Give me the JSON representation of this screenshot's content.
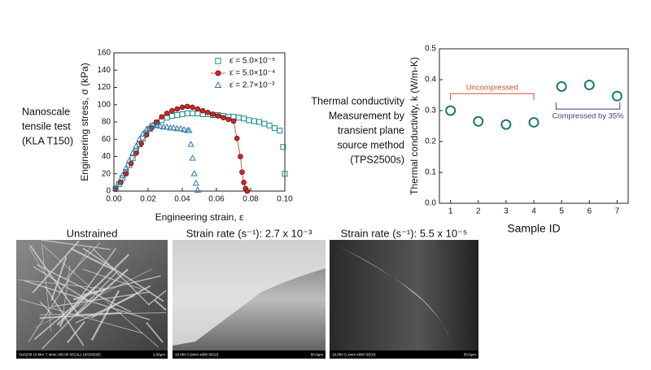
{
  "chart_data": [
    {
      "type": "scatter",
      "xlabel": "Engineering strain, ε",
      "ylabel": "Engineering stress, σ (kPa)",
      "xlim": [
        0,
        0.1
      ],
      "ylim": [
        0,
        160
      ],
      "xticks": [
        {
          "value": 0,
          "label": "0.00"
        },
        {
          "value": 0.02,
          "label": "0.02"
        },
        {
          "value": 0.04,
          "label": "0.04"
        },
        {
          "value": 0.06,
          "label": "0.06"
        },
        {
          "value": 0.08,
          "label": "0.08"
        },
        {
          "value": 0.1,
          "label": "0.10"
        }
      ],
      "yticks": [
        0,
        20,
        40,
        60,
        80,
        100,
        120,
        140,
        160
      ],
      "legend": "upper right",
      "series": [
        {
          "name": "ε̇ = 5.0×10⁻⁵",
          "color": "#1a8a8a",
          "marker": "square",
          "x": [
            0.001,
            0.003,
            0.005,
            0.007,
            0.009,
            0.011,
            0.013,
            0.015,
            0.017,
            0.019,
            0.021,
            0.023,
            0.025,
            0.028,
            0.031,
            0.034,
            0.037,
            0.04,
            0.043,
            0.046,
            0.049,
            0.052,
            0.055,
            0.058,
            0.061,
            0.064,
            0.067,
            0.07,
            0.073,
            0.076,
            0.079,
            0.082,
            0.085,
            0.088,
            0.091,
            0.094,
            0.097,
            0.099,
            0.1
          ],
          "values": [
            3,
            8,
            15,
            22,
            30,
            38,
            46,
            54,
            61,
            67,
            72,
            76,
            79,
            82,
            85,
            87,
            88,
            89,
            90,
            90,
            90,
            89,
            89,
            88,
            88,
            87,
            86,
            86,
            85,
            84,
            82,
            81,
            80,
            78,
            76,
            73,
            70,
            51,
            20
          ]
        },
        {
          "name": "ε̇ = 5.0×10⁻⁴",
          "color": "#c62828",
          "marker": "circle",
          "line": true,
          "x": [
            0.001,
            0.004,
            0.007,
            0.01,
            0.013,
            0.016,
            0.019,
            0.022,
            0.025,
            0.028,
            0.031,
            0.034,
            0.037,
            0.04,
            0.043,
            0.046,
            0.049,
            0.052,
            0.055,
            0.058,
            0.061,
            0.064,
            0.067,
            0.07,
            0.072,
            0.074,
            0.075,
            0.076,
            0.077,
            0.078
          ],
          "values": [
            2,
            10,
            20,
            32,
            44,
            55,
            65,
            73,
            80,
            86,
            90,
            93,
            95,
            97,
            98,
            97,
            95,
            93,
            91,
            89,
            87,
            85,
            83,
            81,
            61,
            40,
            22,
            10,
            3,
            0
          ]
        },
        {
          "name": "ε̇ = 2.7×10⁻³",
          "color": "#2a7ab0",
          "marker": "triangle",
          "x": [
            0.001,
            0.003,
            0.005,
            0.007,
            0.009,
            0.011,
            0.013,
            0.015,
            0.017,
            0.019,
            0.021,
            0.023,
            0.025,
            0.027,
            0.029,
            0.031,
            0.033,
            0.035,
            0.037,
            0.039,
            0.041,
            0.043,
            0.044,
            0.045,
            0.046,
            0.047,
            0.048,
            0.049
          ],
          "values": [
            3,
            10,
            18,
            26,
            35,
            44,
            52,
            60,
            66,
            71,
            74,
            76,
            76,
            75,
            74,
            74,
            73,
            73,
            72,
            72,
            71,
            70,
            70,
            54,
            38,
            20,
            9,
            1
          ]
        }
      ]
    },
    {
      "type": "scatter",
      "xlabel": "Sample ID",
      "ylabel": "Thermal conductivity, k (W/m-K)",
      "xlim": [
        0.6,
        7.4
      ],
      "ylim": [
        0,
        0.5
      ],
      "xticks": [
        1,
        2,
        3,
        4,
        5,
        6,
        7
      ],
      "yticks": [
        {
          "value": 0,
          "label": "0.0"
        },
        0.1,
        0.2,
        0.3,
        0.4,
        0.5
      ],
      "series": [
        {
          "color": "#1a7a6a",
          "marker": "circle",
          "hollow": true,
          "x": [
            1,
            2,
            3,
            4,
            5,
            6,
            7
          ],
          "values": [
            0.3,
            0.265,
            0.255,
            0.262,
            0.378,
            0.383,
            0.347
          ]
        }
      ],
      "annotations": [
        "Uncompressed",
        "Compressed by 35%"
      ]
    }
  ],
  "left_note": [
    "Nanoscale",
    "tensile test",
    "(KLA T150)"
  ],
  "right_note": [
    "Thermal conductivity",
    "Measurement by",
    "transient plane",
    "source method",
    "(TPS2500s)"
  ],
  "images": [
    {
      "caption": "Unstrained",
      "info": "SU8230 10.0kV 7.4mm x30.0k SE(UL) 10/23/2025",
      "scale": "1.00μm"
    },
    {
      "caption": "Strain rate (s⁻¹): 2.7 x 10⁻³",
      "info": "10.0kV 5.9mm x600 SE(U)",
      "scale": "50.0μm"
    },
    {
      "caption": "Strain rate (s⁻¹): 5.5 x 10⁻⁵",
      "info": "10.0kV 6.1mm x600 SE(U)",
      "scale": "50.0μm"
    }
  ]
}
